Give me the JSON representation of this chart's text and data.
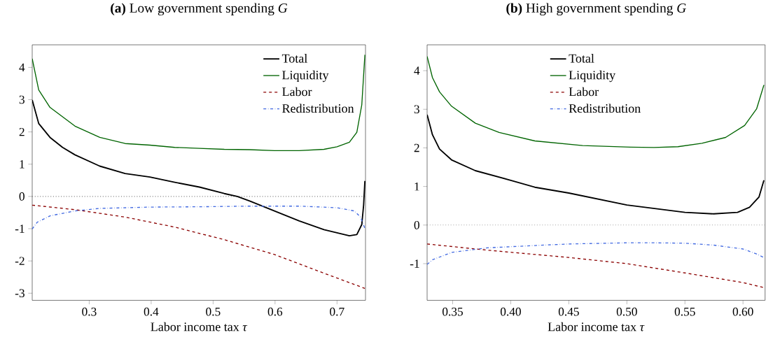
{
  "chart_data": [
    {
      "type": "line",
      "title": "**(a)** Low government spending *G*",
      "xlabel": "Labor income tax *τ*",
      "xlim": [
        0.208,
        0.746
      ],
      "ylim": [
        -3.22,
        4.7
      ],
      "xticks": [
        0.3,
        0.4,
        0.5,
        0.6,
        0.7
      ],
      "yticks": [
        -3,
        -2,
        -1,
        0,
        1,
        2,
        3,
        4
      ],
      "legend": "top right",
      "grid": false,
      "marker": "none",
      "ref_lines": [
        {
          "axis": "y",
          "value": 0,
          "color": "#808080",
          "line_style": "dotted"
        }
      ],
      "series": [
        {
          "name": "Total",
          "color": "#000000",
          "line_style": "solid",
          "x": [
            0.208,
            0.2185,
            0.2367,
            0.257,
            0.277,
            0.317,
            0.358,
            0.398,
            0.438,
            0.478,
            0.518,
            0.539,
            0.559,
            0.599,
            0.639,
            0.679,
            0.72,
            0.732,
            0.74,
            0.743,
            0.745
          ],
          "values": [
            2.99,
            2.26,
            1.83,
            1.52,
            1.29,
            0.94,
            0.71,
            0.6,
            0.44,
            0.29,
            0.09,
            0,
            -0.14,
            -0.45,
            -0.76,
            -1.03,
            -1.22,
            -1.18,
            -0.87,
            -0.26,
            0.48
          ]
        },
        {
          "name": "Liquidity",
          "color": "#006400",
          "line_style": "solid",
          "x": [
            0.208,
            0.2185,
            0.2367,
            0.277,
            0.317,
            0.358,
            0.398,
            0.438,
            0.478,
            0.518,
            0.559,
            0.599,
            0.639,
            0.679,
            0.7,
            0.72,
            0.732,
            0.74,
            0.745
          ],
          "values": [
            4.27,
            3.3,
            2.76,
            2.18,
            1.83,
            1.64,
            1.59,
            1.52,
            1.49,
            1.46,
            1.45,
            1.42,
            1.42,
            1.46,
            1.54,
            1.68,
            1.99,
            2.84,
            4.39
          ]
        },
        {
          "name": "Labor",
          "color": "#8b0000",
          "line_style": "dashed",
          "x": [
            0.208,
            0.277,
            0.358,
            0.438,
            0.518,
            0.599,
            0.679,
            0.745
          ],
          "values": [
            -0.27,
            -0.41,
            -0.64,
            -0.95,
            -1.34,
            -1.8,
            -2.38,
            -2.85
          ]
        },
        {
          "name": "Redistribution",
          "color": "#4169e1",
          "line_style": "dashdot",
          "x": [
            0.208,
            0.216,
            0.237,
            0.277,
            0.317,
            0.398,
            0.478,
            0.559,
            0.639,
            0.7,
            0.728,
            0.738,
            0.745
          ],
          "values": [
            -1.01,
            -0.8,
            -0.6,
            -0.45,
            -0.37,
            -0.33,
            -0.32,
            -0.3,
            -0.3,
            -0.35,
            -0.45,
            -0.64,
            -0.99
          ]
        }
      ]
    },
    {
      "type": "line",
      "title": "**(b)** High government spending *G*",
      "xlabel": "Labor income tax *τ*",
      "xlim": [
        0.328,
        0.619
      ],
      "ylim": [
        -1.95,
        4.67
      ],
      "xticks": [
        {
          "value": 0.35,
          "label": "0.35"
        },
        {
          "value": 0.4,
          "label": "0.40"
        },
        {
          "value": 0.45,
          "label": "0.45"
        },
        {
          "value": 0.5,
          "label": "0.50"
        },
        {
          "value": 0.55,
          "label": "0.55"
        },
        {
          "value": 0.6,
          "label": "0.60"
        }
      ],
      "yticks": [
        -1,
        0,
        1,
        2,
        3,
        4
      ],
      "legend": "top",
      "grid": false,
      "marker": "none",
      "ref_lines": [
        {
          "axis": "y",
          "value": 0,
          "color": "#808080",
          "line_style": "dotted"
        }
      ],
      "series": [
        {
          "name": "Total",
          "color": "#000000",
          "line_style": "solid",
          "x": [
            0.328,
            0.3326,
            0.3387,
            0.349,
            0.3695,
            0.4,
            0.4208,
            0.45,
            0.5,
            0.55,
            0.5748,
            0.5953,
            0.6056,
            0.6138,
            0.618
          ],
          "values": [
            2.86,
            2.34,
            1.97,
            1.69,
            1.41,
            1.16,
            0.98,
            0.83,
            0.52,
            0.33,
            0.29,
            0.33,
            0.46,
            0.73,
            1.16
          ]
        },
        {
          "name": "Liquidity",
          "color": "#006400",
          "line_style": "solid",
          "x": [
            0.328,
            0.3326,
            0.3387,
            0.349,
            0.3695,
            0.39,
            0.4208,
            0.4619,
            0.503,
            0.5234,
            0.544,
            0.5646,
            0.585,
            0.6014,
            0.6117,
            0.618
          ],
          "values": [
            4.37,
            3.82,
            3.45,
            3.08,
            2.64,
            2.4,
            2.18,
            2.06,
            2.02,
            2.01,
            2.03,
            2.12,
            2.27,
            2.58,
            3.01,
            3.63
          ]
        },
        {
          "name": "Labor",
          "color": "#8b0000",
          "line_style": "dashed",
          "x": [
            0.328,
            0.3798,
            0.45,
            0.5,
            0.55,
            0.6,
            0.618
          ],
          "values": [
            -0.49,
            -0.65,
            -0.84,
            -1.0,
            -1.24,
            -1.49,
            -1.62
          ]
        },
        {
          "name": "Redistribution",
          "color": "#4169e1",
          "line_style": "dashdot",
          "x": [
            0.328,
            0.3326,
            0.349,
            0.3798,
            0.4208,
            0.45,
            0.5,
            0.5234,
            0.55,
            0.5748,
            0.6,
            0.6117,
            0.618
          ],
          "values": [
            -1.02,
            -0.9,
            -0.71,
            -0.59,
            -0.53,
            -0.49,
            -0.46,
            -0.46,
            -0.47,
            -0.52,
            -0.62,
            -0.75,
            -0.84
          ]
        }
      ]
    }
  ]
}
